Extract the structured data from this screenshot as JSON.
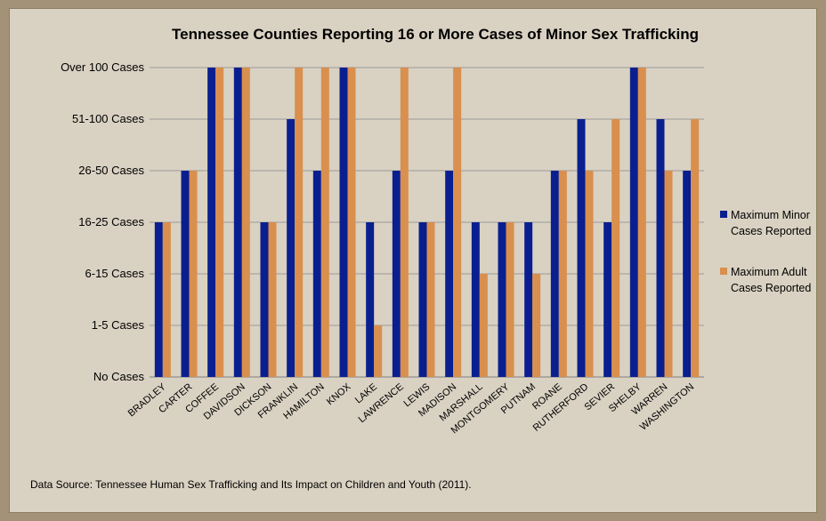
{
  "chart_data": {
    "type": "bar",
    "title": "Tennessee Counties Reporting 16 or More Cases of Minor Sex Trafficking",
    "xlabel": "",
    "ylabel": "",
    "y_levels": [
      "No Cases",
      "1-5 Cases",
      "6-15 Cases",
      "16-25 Cases",
      "26-50 Cases",
      "51-100 Cases",
      "Over 100 Cases"
    ],
    "ylim": [
      0,
      6
    ],
    "grid": true,
    "legend_position": "right",
    "categories": [
      "BRADLEY",
      "CARTER",
      "COFFEE",
      "DAVIDSON",
      "DICKSON",
      "FRANKLIN",
      "HAMILTON",
      "KNOX",
      "LAKE",
      "LAWRENCE",
      "LEWIS",
      "MADISON",
      "MARSHALL",
      "MONTGOMERY",
      "PUTNAM",
      "ROANE",
      "RUTHERFORD",
      "SEVIER",
      "SHELBY",
      "WARREN",
      "WASHINGTON"
    ],
    "series": [
      {
        "name": "Maximum Minor Cases Reported",
        "color": "#0a1f8f",
        "values": [
          3,
          4,
          6,
          6,
          3,
          5,
          4,
          6,
          3,
          4,
          3,
          4,
          3,
          3,
          3,
          4,
          5,
          3,
          6,
          5,
          4
        ]
      },
      {
        "name": "Maximum Adult Cases Reported",
        "color": "#d98f4e",
        "values": [
          3,
          4,
          6,
          6,
          3,
          6,
          6,
          6,
          1,
          6,
          3,
          6,
          2,
          3,
          2,
          4,
          4,
          5,
          6,
          4,
          5
        ]
      }
    ]
  },
  "legend": {
    "minor_line1": "Maximum Minor",
    "minor_line2": "Cases Reported",
    "adult_line1": "Maximum Adult",
    "adult_line2": "Cases Reported"
  },
  "source_note": "Data Source:  Tennessee Human Sex Trafficking and Its Impact on Children and Youth (2011)."
}
